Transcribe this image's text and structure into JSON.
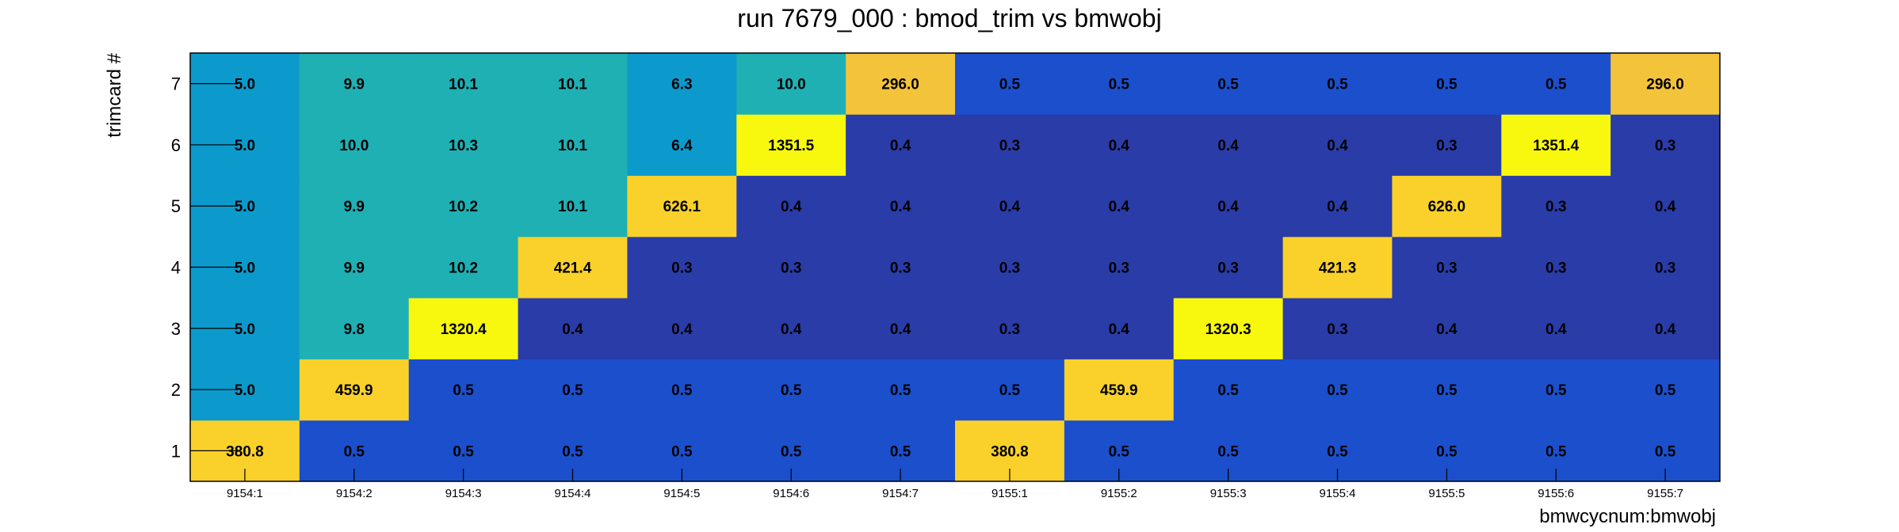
{
  "chart_data": {
    "type": "heatmap",
    "title": "run 7679_000 : bmod_trim vs bmwobj",
    "xlabel": "bmwcycnum:bmwobj",
    "ylabel": "trimcard #",
    "x_categories": [
      "9154:1",
      "9154:2",
      "9154:3",
      "9154:4",
      "9154:5",
      "9154:6",
      "9154:7",
      "9155:1",
      "9155:2",
      "9155:3",
      "9155:4",
      "9155:5",
      "9155:6",
      "9155:7"
    ],
    "y_categories": [
      "1",
      "2",
      "3",
      "4",
      "5",
      "6",
      "7"
    ],
    "values": [
      [
        "380.8",
        "0.5",
        "0.5",
        "0.5",
        "0.5",
        "0.5",
        "0.5",
        "380.8",
        "0.5",
        "0.5",
        "0.5",
        "0.5",
        "0.5",
        "0.5"
      ],
      [
        "5.0",
        "459.9",
        "0.5",
        "0.5",
        "0.5",
        "0.5",
        "0.5",
        "0.5",
        "459.9",
        "0.5",
        "0.5",
        "0.5",
        "0.5",
        "0.5"
      ],
      [
        "5.0",
        "9.8",
        "1320.4",
        "0.4",
        "0.4",
        "0.4",
        "0.4",
        "0.3",
        "0.4",
        "1320.3",
        "0.3",
        "0.4",
        "0.4",
        "0.4"
      ],
      [
        "5.0",
        "9.9",
        "10.2",
        "421.4",
        "0.3",
        "0.3",
        "0.3",
        "0.3",
        "0.3",
        "0.3",
        "421.3",
        "0.3",
        "0.3",
        "0.3"
      ],
      [
        "5.0",
        "9.9",
        "10.2",
        "10.1",
        "626.1",
        "0.4",
        "0.4",
        "0.4",
        "0.4",
        "0.4",
        "0.4",
        "626.0",
        "0.3",
        "0.4"
      ],
      [
        "5.0",
        "10.0",
        "10.3",
        "10.1",
        "6.4",
        "1351.5",
        "0.4",
        "0.3",
        "0.4",
        "0.4",
        "0.4",
        "0.3",
        "1351.4",
        "0.3"
      ],
      [
        "5.0",
        "9.9",
        "10.1",
        "10.1",
        "6.3",
        "10.0",
        "296.0",
        "0.5",
        "0.5",
        "0.5",
        "0.5",
        "0.5",
        "0.5",
        "296.0"
      ]
    ],
    "color_scale": "viridis-like (log)",
    "colors": {
      "c_0_3": "#2a3ca8",
      "c_0_5": "#1b4fcc",
      "c_5": "#0c9acc",
      "c_10": "#1fb0b4",
      "c_300": "#f3c33a",
      "c_mid": "#fad12a",
      "c_max": "#f8f80f",
      "frame": "#000000"
    }
  }
}
